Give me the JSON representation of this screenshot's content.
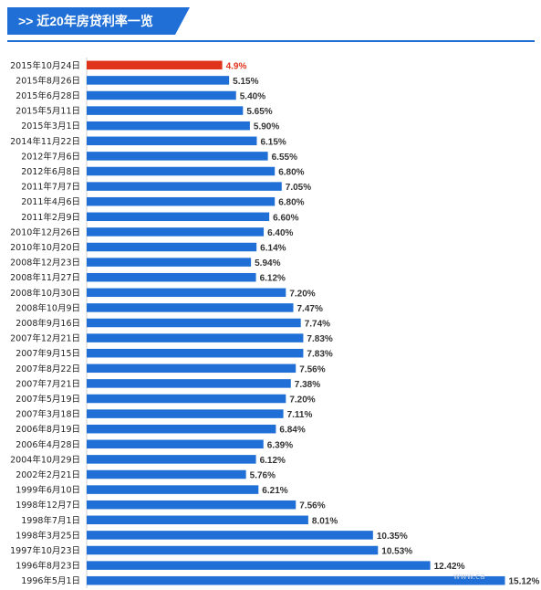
{
  "header": {
    "arrow": ">>",
    "title": "近20年房贷利率一览"
  },
  "watermark": "www.ca",
  "chart_data": {
    "type": "bar",
    "orientation": "horizontal",
    "title": "近20年房贷利率一览",
    "xlim": [
      0,
      15.5
    ],
    "grid": false,
    "legend": "none",
    "colors": {
      "default": "#1f6fd6",
      "highlight": "#e0331c"
    },
    "highlight_index": 0,
    "categories": [
      "2015年10月24日",
      "2015年8月26日",
      "2015年6月28日",
      "2015年5月11日",
      "2015年3月1日",
      "2014年11月22日",
      "2012年7月6日",
      "2012年6月8日",
      "2011年7月7日",
      "2011年4月6日",
      "2011年2月9日",
      "2010年12月26日",
      "2010年10月20日",
      "2008年12月23日",
      "2008年11月27日",
      "2008年10月30日",
      "2008年10月9日",
      "2008年9月16日",
      "2007年12月21日",
      "2007年9月15日",
      "2007年8月22日",
      "2007年7月21日",
      "2007年5月19日",
      "2007年3月18日",
      "2006年8月19日",
      "2006年4月28日",
      "2004年10月29日",
      "2002年2月21日",
      "1999年6月10日",
      "1998年12月7日",
      "1998年7月1日",
      "1998年3月25日",
      "1997年10月23日",
      "1996年8月23日",
      "1996年5月1日"
    ],
    "values": [
      4.9,
      5.15,
      5.4,
      5.65,
      5.9,
      6.15,
      6.55,
      6.8,
      7.05,
      6.8,
      6.6,
      6.4,
      6.14,
      5.94,
      6.12,
      7.2,
      7.47,
      7.74,
      7.83,
      7.83,
      7.56,
      7.38,
      7.2,
      7.11,
      6.84,
      6.39,
      6.12,
      5.76,
      6.21,
      7.56,
      8.01,
      10.35,
      10.53,
      12.42,
      15.12
    ],
    "labels": [
      "4.9%",
      "5.15%",
      "5.40%",
      "5.65%",
      "5.90%",
      "6.15%",
      "6.55%",
      "6.80%",
      "7.05%",
      "6.80%",
      "6.60%",
      "6.40%",
      "6.14%",
      "5.94%",
      "6.12%",
      "7.20%",
      "7.47%",
      "7.74%",
      "7.83%",
      "7.83%",
      "7.56%",
      "7.38%",
      "7.20%",
      "7.11%",
      "6.84%",
      "6.39%",
      "6.12%",
      "5.76%",
      "6.21%",
      "7.56%",
      "8.01%",
      "10.35%",
      "10.53%",
      "12.42%",
      "15.12%"
    ]
  }
}
